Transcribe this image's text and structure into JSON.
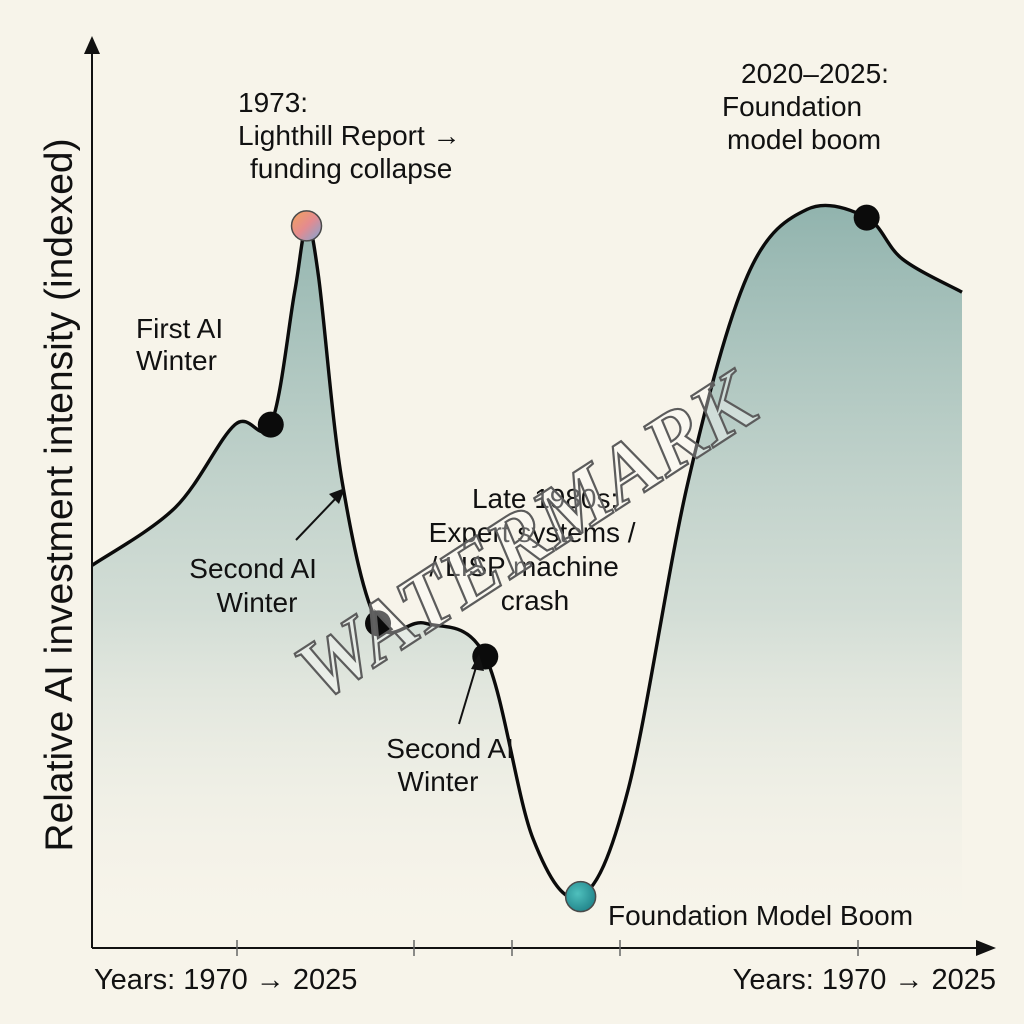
{
  "chart_data": {
    "type": "area",
    "title": "",
    "ylabel": "Relative AI investment intensity (indexed)",
    "xlabel_left": "Years: 1970 → 2025",
    "xlabel_right": "Years: 1970 → 2025",
    "xlim": [
      1955,
      2028
    ],
    "ylim": [
      0,
      100
    ],
    "grid": false,
    "legend": "none",
    "series": [
      {
        "name": "Relative AI investment intensity",
        "x": [
          1955,
          1962,
          1967,
          1970,
          1972,
          1973,
          1974,
          1976,
          1979,
          1983,
          1988,
          1992,
          1996,
          2000,
          2005,
          2010,
          2015,
          2020,
          2023,
          2028
        ],
        "values": [
          45,
          52,
          62,
          62,
          78,
          86,
          80,
          55,
          38,
          38,
          34,
          12,
          5,
          18,
          55,
          80,
          88,
          87,
          82,
          78
        ]
      }
    ],
    "key_points": [
      {
        "x": 1970,
        "y": 62,
        "style": "black"
      },
      {
        "x": 1973,
        "y": 86,
        "style": "gradient"
      },
      {
        "x": 1979,
        "y": 38,
        "style": "black"
      },
      {
        "x": 1988,
        "y": 34,
        "style": "black"
      },
      {
        "x": 1996,
        "y": 5,
        "style": "teal"
      },
      {
        "x": 2020,
        "y": 87,
        "style": "black"
      }
    ],
    "annotations": {
      "lighthill": [
        "1973:",
        "Lighthill Report →",
        "funding collapse"
      ],
      "first_winter": [
        "First AI",
        "Winter"
      ],
      "second_winter_a": [
        "Second AI",
        "Winter"
      ],
      "late_1980s": [
        "Late 1980s:",
        "Expert systems /",
        "/ LISP machine",
        "crash"
      ],
      "second_winter_b": [
        "Second AI",
        "Winter"
      ],
      "foundation_top": [
        "2020–2025:",
        "Foundation",
        "model boom"
      ],
      "foundation_bottom": "Foundation Model Boom"
    },
    "watermark": "WATERMARK"
  }
}
